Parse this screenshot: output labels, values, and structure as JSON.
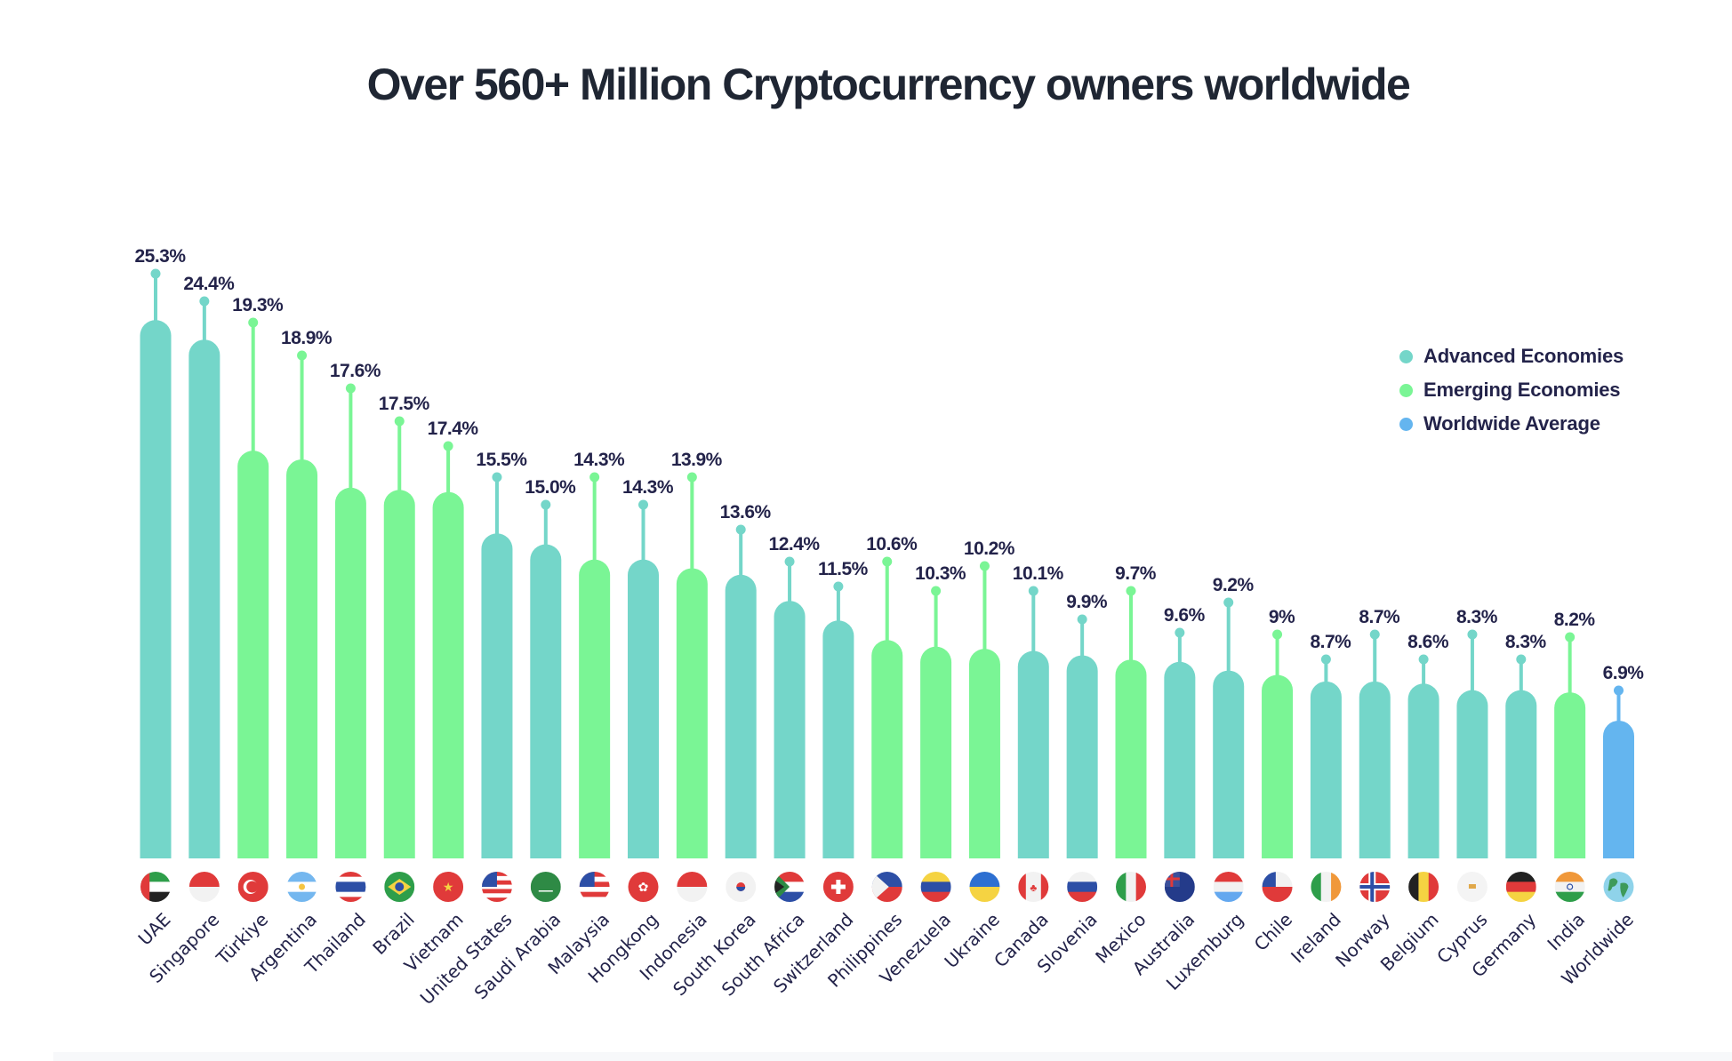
{
  "chart_data": {
    "type": "bar",
    "title": "Over 560+ Million Cryptocurrency owners worldwide",
    "xlabel": "",
    "ylabel": "",
    "unit": "%",
    "ylim": [
      0,
      26
    ],
    "grid": false,
    "legend_position": "top-right",
    "legend": [
      {
        "key": "advanced",
        "label": "Advanced Economies",
        "color": "#74d6c9"
      },
      {
        "key": "emerging",
        "label": "Emerging Economies",
        "color": "#7af595"
      },
      {
        "key": "worldwide",
        "label": "Worldwide Average",
        "color": "#64b5ef"
      }
    ],
    "categories": [
      "UAE",
      "Singapore",
      "Türkiye",
      "Argentina",
      "Thailand",
      "Brazil",
      "Vietnam",
      "United States",
      "Saudi Arabia",
      "Malaysia",
      "Hongkong",
      "Indonesia",
      "South Korea",
      "South Africa",
      "Switzerland",
      "Philippines",
      "Venezuela",
      "Ukraine",
      "Canada",
      "Slovenia",
      "Mexico",
      "Australia",
      "Luxemburg",
      "Chile",
      "Ireland",
      "Norway",
      "Belgium",
      "Cyprus",
      "Germany",
      "India",
      "Worldwide"
    ],
    "values": [
      25.3,
      24.4,
      19.3,
      18.9,
      17.6,
      17.5,
      17.4,
      15.5,
      15.0,
      14.3,
      14.3,
      13.9,
      13.6,
      12.4,
      11.5,
      10.6,
      10.3,
      10.2,
      10.1,
      9.9,
      9.7,
      9.6,
      9.2,
      9.0,
      8.7,
      8.7,
      8.6,
      8.3,
      8.3,
      8.2,
      6.9
    ],
    "value_labels": [
      "25.3%",
      "24.4%",
      "19.3%",
      "18.9%",
      "17.6%",
      "17.5%",
      "17.4%",
      "15.5%",
      "15.0%",
      "14.3%",
      "14.3%",
      "13.9%",
      "13.6%",
      "12.4%",
      "11.5%",
      "10.6%",
      "10.3%",
      "10.2%",
      "10.1%",
      "9.9%",
      "9.7%",
      "9.6%",
      "9.2%",
      "9%",
      "8.7%",
      "8.7%",
      "8.6%",
      "8.3%",
      "8.3%",
      "8.2%",
      "6.9%"
    ],
    "groups": [
      "advanced",
      "advanced",
      "emerging",
      "emerging",
      "emerging",
      "emerging",
      "emerging",
      "advanced",
      "advanced",
      "emerging",
      "advanced",
      "emerging",
      "advanced",
      "advanced",
      "advanced",
      "emerging",
      "emerging",
      "emerging",
      "advanced",
      "advanced",
      "emerging",
      "advanced",
      "advanced",
      "emerging",
      "advanced",
      "advanced",
      "advanced",
      "advanced",
      "advanced",
      "emerging",
      "worldwide"
    ],
    "flag_icons": [
      "flag-uae-icon",
      "flag-singapore-icon",
      "flag-turkiye-icon",
      "flag-argentina-icon",
      "flag-thailand-icon",
      "flag-brazil-icon",
      "flag-vietnam-icon",
      "flag-united-states-icon",
      "flag-saudi-arabia-icon",
      "flag-malaysia-icon",
      "flag-hongkong-icon",
      "flag-indonesia-icon",
      "flag-south-korea-icon",
      "flag-south-africa-icon",
      "flag-switzerland-icon",
      "flag-philippines-icon",
      "flag-venezuela-icon",
      "flag-ukraine-icon",
      "flag-canada-icon",
      "flag-slovenia-icon",
      "flag-mexico-icon",
      "flag-australia-icon",
      "flag-luxemburg-icon",
      "flag-chile-icon",
      "flag-ireland-icon",
      "flag-norway-icon",
      "flag-belgium-icon",
      "flag-cyprus-icon",
      "flag-germany-icon",
      "flag-india-icon",
      "globe-icon"
    ]
  }
}
